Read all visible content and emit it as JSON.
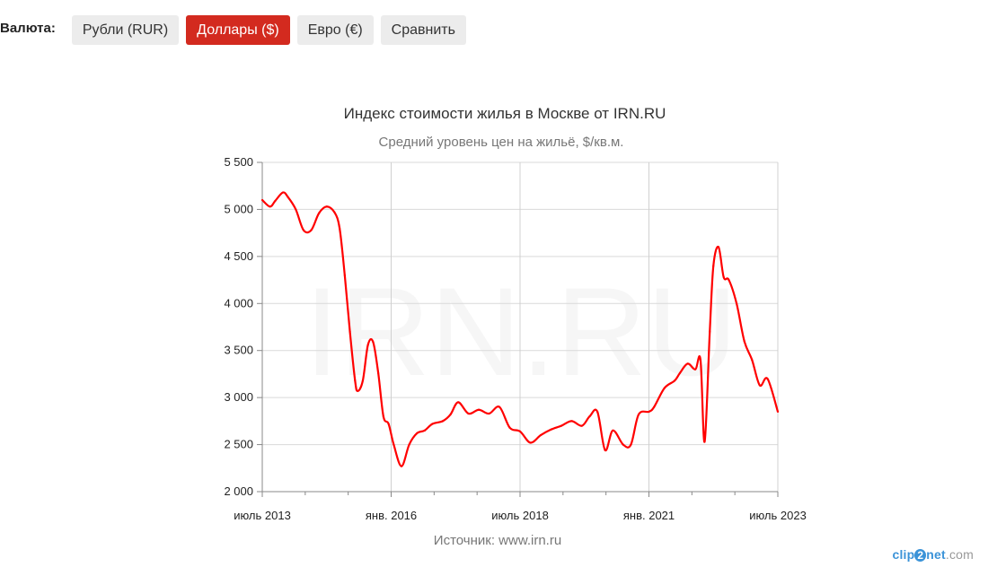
{
  "currency": {
    "label": "Валюта:",
    "options": [
      "Рубли (RUR)",
      "Доллары ($)",
      "Евро (€)",
      "Сравнить"
    ],
    "selected": "Доллары ($)"
  },
  "chart_data": {
    "type": "line",
    "title": "Индекс стоимости жилья в Москве от IRN.RU",
    "subtitle": "Средний уровень цен на жильё, $/кв.м.",
    "source": "Источник: www.irn.ru",
    "watermark": "IRN.RU",
    "xlabel": "",
    "ylabel": "",
    "ylim": [
      2000,
      5500
    ],
    "yticks": [
      2000,
      2500,
      3000,
      3500,
      4000,
      4500,
      5000,
      5500
    ],
    "ytick_labels": [
      "2 000",
      "2 500",
      "3 000",
      "3 500",
      "4 000",
      "4 500",
      "5 000",
      "5 500"
    ],
    "xlim": [
      2013.5,
      2023.5
    ],
    "xticks": [
      2013.5,
      2016.0,
      2018.5,
      2021.0,
      2023.5
    ],
    "xtick_labels": [
      "июль 2013",
      "янв. 2016",
      "июль 2018",
      "янв. 2021",
      "июль 2023"
    ],
    "grid": true,
    "line_color": "#ff0000",
    "series": [
      {
        "name": "",
        "x": [
          2013.5,
          2013.65,
          2013.75,
          2013.9,
          2014.0,
          2014.15,
          2014.3,
          2014.45,
          2014.6,
          2014.75,
          2014.9,
          2015.0,
          2015.1,
          2015.2,
          2015.3,
          2015.35,
          2015.45,
          2015.55,
          2015.65,
          2015.75,
          2015.85,
          2015.95,
          2016.05,
          2016.2,
          2016.35,
          2016.5,
          2016.65,
          2016.8,
          2017.0,
          2017.15,
          2017.3,
          2017.5,
          2017.7,
          2017.9,
          2018.1,
          2018.3,
          2018.5,
          2018.7,
          2018.9,
          2019.1,
          2019.3,
          2019.5,
          2019.7,
          2019.85,
          2020.0,
          2020.15,
          2020.3,
          2020.5,
          2020.65,
          2020.8,
          2021.0,
          2021.1,
          2021.3,
          2021.5,
          2021.6,
          2021.75,
          2021.9,
          2022.0,
          2022.08,
          2022.18,
          2022.25,
          2022.35,
          2022.45,
          2022.55,
          2022.7,
          2022.85,
          2023.0,
          2023.15,
          2023.3,
          2023.5
        ],
        "y": [
          5100,
          5030,
          5090,
          5180,
          5130,
          5000,
          4780,
          4780,
          4960,
          5030,
          4970,
          4800,
          4300,
          3700,
          3180,
          3070,
          3180,
          3560,
          3590,
          3260,
          2800,
          2720,
          2500,
          2270,
          2500,
          2620,
          2650,
          2720,
          2750,
          2820,
          2950,
          2830,
          2870,
          2830,
          2900,
          2680,
          2640,
          2520,
          2600,
          2660,
          2700,
          2750,
          2700,
          2800,
          2850,
          2440,
          2650,
          2500,
          2500,
          2820,
          2850,
          2900,
          3100,
          3180,
          3260,
          3360,
          3300,
          3400,
          2530,
          3700,
          4400,
          4600,
          4280,
          4250,
          4000,
          3600,
          3400,
          3130,
          3200,
          2850
        ]
      }
    ]
  },
  "clip2net": {
    "text_a": "clip",
    "text_b": "2",
    "text_c": "net",
    "text_d": ".com"
  }
}
